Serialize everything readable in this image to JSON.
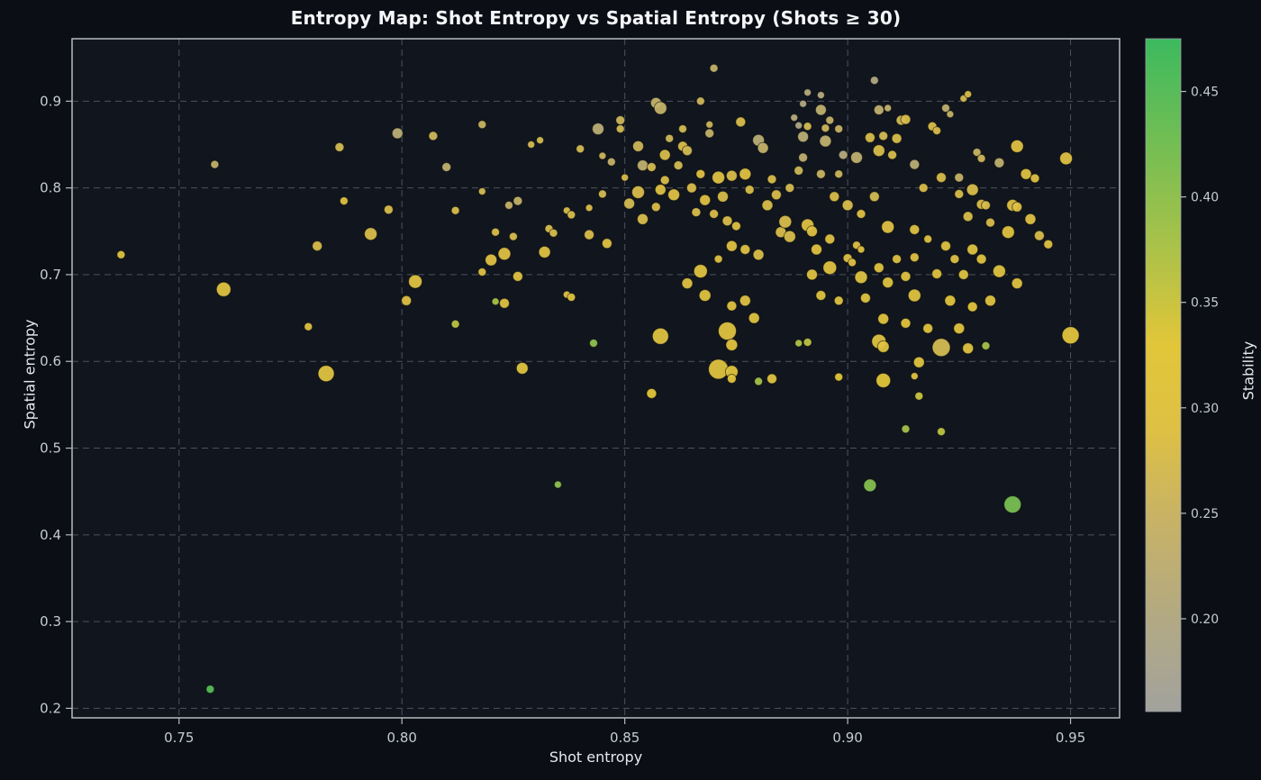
{
  "chart_data": {
    "type": "scatter",
    "title": "Entropy Map: Shot Entropy vs Spatial Entropy (Shots ≥ 30)",
    "xlabel": "Shot entropy",
    "ylabel": "Spatial entropy",
    "xlim": [
      0.726,
      0.961
    ],
    "ylim": [
      0.189,
      0.972
    ],
    "x_tick_values": [
      0.75,
      0.8,
      0.85,
      0.9,
      0.95
    ],
    "x_tick_labels": [
      "0.75",
      "0.80",
      "0.85",
      "0.90",
      "0.95"
    ],
    "y_tick_values": [
      0.2,
      0.3,
      0.4,
      0.5,
      0.6,
      0.7,
      0.8,
      0.9
    ],
    "y_tick_labels": [
      "0.2",
      "0.3",
      "0.4",
      "0.5",
      "0.6",
      "0.7",
      "0.8",
      "0.9"
    ],
    "grid": true,
    "colorbar": {
      "label": "Stability",
      "range": [
        0.156,
        0.475
      ],
      "tick_values": [
        0.2,
        0.25,
        0.3,
        0.35,
        0.4,
        0.45
      ],
      "tick_labels": [
        "0.20",
        "0.25",
        "0.30",
        "0.35",
        "0.40",
        "0.45"
      ],
      "colormap": [
        [
          0.156,
          "#a2a29d"
        ],
        [
          0.2,
          "#b2a983"
        ],
        [
          0.25,
          "#c9b363"
        ],
        [
          0.29,
          "#dec043"
        ],
        [
          0.33,
          "#e2c639"
        ],
        [
          0.37,
          "#b1c247"
        ],
        [
          0.41,
          "#84bf50"
        ],
        [
          0.475,
          "#3cba5e"
        ]
      ]
    },
    "point_format": "[shot_entropy, spatial_entropy, radius_px, stability]",
    "points": [
      [
        0.737,
        0.723,
        4.5,
        0.3
      ],
      [
        0.757,
        0.222,
        4.5,
        0.45
      ],
      [
        0.758,
        0.827,
        4.5,
        0.24
      ],
      [
        0.76,
        0.683,
        8,
        0.3
      ],
      [
        0.779,
        0.64,
        4.5,
        0.29
      ],
      [
        0.781,
        0.733,
        5.5,
        0.28
      ],
      [
        0.783,
        0.586,
        9,
        0.3
      ],
      [
        0.786,
        0.847,
        5,
        0.27
      ],
      [
        0.787,
        0.785,
        4.5,
        0.29
      ],
      [
        0.793,
        0.747,
        7,
        0.28
      ],
      [
        0.797,
        0.775,
        5,
        0.28
      ],
      [
        0.799,
        0.863,
        6,
        0.22
      ],
      [
        0.801,
        0.67,
        5.5,
        0.29
      ],
      [
        0.803,
        0.692,
        7.5,
        0.3
      ],
      [
        0.807,
        0.86,
        5,
        0.26
      ],
      [
        0.81,
        0.824,
        5,
        0.23
      ],
      [
        0.812,
        0.774,
        4.5,
        0.28
      ],
      [
        0.812,
        0.643,
        4.5,
        0.36
      ],
      [
        0.818,
        0.873,
        4.5,
        0.25
      ],
      [
        0.818,
        0.796,
        4,
        0.27
      ],
      [
        0.818,
        0.703,
        4.5,
        0.29
      ],
      [
        0.82,
        0.717,
        6.5,
        0.29
      ],
      [
        0.821,
        0.749,
        4.5,
        0.28
      ],
      [
        0.821,
        0.669,
        4,
        0.38
      ],
      [
        0.823,
        0.724,
        7,
        0.29
      ],
      [
        0.823,
        0.667,
        5.5,
        0.29
      ],
      [
        0.824,
        0.78,
        4.5,
        0.24
      ],
      [
        0.825,
        0.744,
        4.5,
        0.28
      ],
      [
        0.826,
        0.785,
        5,
        0.24
      ],
      [
        0.826,
        0.698,
        5.5,
        0.29
      ],
      [
        0.827,
        0.592,
        6.5,
        0.3
      ],
      [
        0.829,
        0.85,
        4,
        0.27
      ],
      [
        0.831,
        0.855,
        4,
        0.27
      ],
      [
        0.832,
        0.726,
        6.5,
        0.29
      ],
      [
        0.833,
        0.753,
        4.5,
        0.28
      ],
      [
        0.834,
        0.748,
        4.5,
        0.28
      ],
      [
        0.835,
        0.458,
        4,
        0.4
      ],
      [
        0.837,
        0.774,
        4,
        0.28
      ],
      [
        0.837,
        0.677,
        4,
        0.3
      ],
      [
        0.838,
        0.769,
        4.5,
        0.28
      ],
      [
        0.838,
        0.674,
        4.5,
        0.3
      ],
      [
        0.84,
        0.845,
        4.5,
        0.27
      ],
      [
        0.842,
        0.777,
        4,
        0.28
      ],
      [
        0.842,
        0.746,
        5.5,
        0.28
      ],
      [
        0.843,
        0.621,
        4.5,
        0.4
      ],
      [
        0.844,
        0.868,
        6.5,
        0.22
      ],
      [
        0.845,
        0.837,
        4,
        0.26
      ],
      [
        0.845,
        0.793,
        4.5,
        0.27
      ],
      [
        0.846,
        0.736,
        5.5,
        0.29
      ],
      [
        0.847,
        0.83,
        4.5,
        0.24
      ],
      [
        0.849,
        0.878,
        5,
        0.26
      ],
      [
        0.849,
        0.868,
        4.5,
        0.27
      ],
      [
        0.85,
        0.812,
        4,
        0.28
      ],
      [
        0.851,
        0.782,
        6,
        0.27
      ],
      [
        0.853,
        0.848,
        6,
        0.26
      ],
      [
        0.853,
        0.795,
        7,
        0.28
      ],
      [
        0.854,
        0.826,
        6,
        0.23
      ],
      [
        0.854,
        0.764,
        6,
        0.28
      ],
      [
        0.856,
        0.824,
        5,
        0.27
      ],
      [
        0.856,
        0.563,
        5.5,
        0.33
      ],
      [
        0.857,
        0.898,
        6,
        0.24
      ],
      [
        0.857,
        0.778,
        5,
        0.28
      ],
      [
        0.858,
        0.892,
        7,
        0.24
      ],
      [
        0.858,
        0.798,
        6,
        0.29
      ],
      [
        0.858,
        0.629,
        9,
        0.3
      ],
      [
        0.859,
        0.838,
        6,
        0.28
      ],
      [
        0.859,
        0.809,
        5,
        0.28
      ],
      [
        0.86,
        0.857,
        4.5,
        0.26
      ],
      [
        0.861,
        0.792,
        6.5,
        0.29
      ],
      [
        0.862,
        0.826,
        5,
        0.27
      ],
      [
        0.863,
        0.868,
        4.5,
        0.27
      ],
      [
        0.863,
        0.848,
        5.5,
        0.28
      ],
      [
        0.864,
        0.843,
        5.5,
        0.27
      ],
      [
        0.864,
        0.69,
        6,
        0.29
      ],
      [
        0.865,
        0.8,
        5.5,
        0.28
      ],
      [
        0.866,
        0.772,
        5,
        0.28
      ],
      [
        0.867,
        0.9,
        4.5,
        0.26
      ],
      [
        0.867,
        0.816,
        5,
        0.29
      ],
      [
        0.867,
        0.704,
        7.5,
        0.3
      ],
      [
        0.868,
        0.786,
        6,
        0.29
      ],
      [
        0.868,
        0.676,
        6.5,
        0.3
      ],
      [
        0.869,
        0.873,
        4,
        0.26
      ],
      [
        0.869,
        0.863,
        5,
        0.24
      ],
      [
        0.87,
        0.938,
        4.5,
        0.24
      ],
      [
        0.87,
        0.77,
        5,
        0.28
      ],
      [
        0.871,
        0.812,
        7,
        0.29
      ],
      [
        0.871,
        0.718,
        4.5,
        0.29
      ],
      [
        0.871,
        0.591,
        11,
        0.3
      ],
      [
        0.872,
        0.79,
        6,
        0.28
      ],
      [
        0.873,
        0.762,
        5.5,
        0.28
      ],
      [
        0.873,
        0.635,
        10,
        0.3
      ],
      [
        0.874,
        0.814,
        6,
        0.28
      ],
      [
        0.874,
        0.733,
        6,
        0.29
      ],
      [
        0.874,
        0.664,
        5.5,
        0.3
      ],
      [
        0.874,
        0.619,
        6.5,
        0.31
      ],
      [
        0.874,
        0.588,
        7,
        0.31
      ],
      [
        0.874,
        0.58,
        5,
        0.32
      ],
      [
        0.875,
        0.756,
        5,
        0.29
      ],
      [
        0.876,
        0.876,
        5.5,
        0.28
      ],
      [
        0.877,
        0.816,
        6.5,
        0.29
      ],
      [
        0.877,
        0.729,
        5.5,
        0.29
      ],
      [
        0.877,
        0.67,
        6,
        0.29
      ],
      [
        0.878,
        0.798,
        5,
        0.28
      ],
      [
        0.879,
        0.65,
        6,
        0.3
      ],
      [
        0.88,
        0.855,
        6.5,
        0.22
      ],
      [
        0.88,
        0.723,
        6,
        0.28
      ],
      [
        0.88,
        0.577,
        4.5,
        0.38
      ],
      [
        0.881,
        0.846,
        6,
        0.24
      ],
      [
        0.882,
        0.78,
        6,
        0.28
      ],
      [
        0.883,
        0.81,
        5,
        0.28
      ],
      [
        0.883,
        0.58,
        5.5,
        0.3
      ],
      [
        0.884,
        0.792,
        5.5,
        0.28
      ],
      [
        0.885,
        0.749,
        6,
        0.28
      ],
      [
        0.886,
        0.761,
        7,
        0.28
      ],
      [
        0.887,
        0.8,
        5,
        0.27
      ],
      [
        0.887,
        0.744,
        6.5,
        0.28
      ],
      [
        0.888,
        0.881,
        4,
        0.21
      ],
      [
        0.889,
        0.872,
        4,
        0.19
      ],
      [
        0.889,
        0.82,
        5,
        0.26
      ],
      [
        0.889,
        0.621,
        4,
        0.37
      ],
      [
        0.89,
        0.897,
        4,
        0.2
      ],
      [
        0.89,
        0.859,
        6,
        0.22
      ],
      [
        0.89,
        0.835,
        5,
        0.23
      ],
      [
        0.891,
        0.91,
        4,
        0.21
      ],
      [
        0.891,
        0.871,
        4.5,
        0.27
      ],
      [
        0.891,
        0.757,
        7,
        0.29
      ],
      [
        0.891,
        0.622,
        4.5,
        0.36
      ],
      [
        0.892,
        0.75,
        6,
        0.29
      ],
      [
        0.892,
        0.7,
        6,
        0.3
      ],
      [
        0.893,
        0.729,
        6,
        0.3
      ],
      [
        0.894,
        0.907,
        4,
        0.21
      ],
      [
        0.894,
        0.89,
        6,
        0.23
      ],
      [
        0.894,
        0.816,
        5,
        0.25
      ],
      [
        0.894,
        0.676,
        5.5,
        0.3
      ],
      [
        0.895,
        0.869,
        4.5,
        0.26
      ],
      [
        0.895,
        0.854,
        6.5,
        0.23
      ],
      [
        0.896,
        0.878,
        4.5,
        0.24
      ],
      [
        0.896,
        0.741,
        5.5,
        0.29
      ],
      [
        0.896,
        0.708,
        7.5,
        0.3
      ],
      [
        0.897,
        0.79,
        5.5,
        0.28
      ],
      [
        0.898,
        0.868,
        4.5,
        0.25
      ],
      [
        0.898,
        0.816,
        4.5,
        0.26
      ],
      [
        0.898,
        0.67,
        5,
        0.3
      ],
      [
        0.898,
        0.582,
        4.5,
        0.33
      ],
      [
        0.899,
        0.838,
        5,
        0.21
      ],
      [
        0.9,
        0.78,
        6,
        0.28
      ],
      [
        0.9,
        0.719,
        5,
        0.29
      ],
      [
        0.901,
        0.714,
        4.5,
        0.3
      ],
      [
        0.902,
        0.835,
        6.5,
        0.23
      ],
      [
        0.902,
        0.734,
        4.5,
        0.29
      ],
      [
        0.903,
        0.77,
        5,
        0.29
      ],
      [
        0.903,
        0.729,
        4,
        0.29
      ],
      [
        0.903,
        0.697,
        7,
        0.3
      ],
      [
        0.904,
        0.673,
        5.5,
        0.3
      ],
      [
        0.905,
        0.858,
        5.5,
        0.28
      ],
      [
        0.905,
        0.457,
        7,
        0.41
      ],
      [
        0.906,
        0.924,
        4.5,
        0.2
      ],
      [
        0.906,
        0.79,
        5.5,
        0.27
      ],
      [
        0.907,
        0.89,
        5.5,
        0.23
      ],
      [
        0.907,
        0.843,
        6.5,
        0.28
      ],
      [
        0.907,
        0.708,
        5.5,
        0.3
      ],
      [
        0.907,
        0.623,
        8,
        0.3
      ],
      [
        0.908,
        0.86,
        5,
        0.27
      ],
      [
        0.908,
        0.649,
        6,
        0.31
      ],
      [
        0.908,
        0.617,
        6.5,
        0.3
      ],
      [
        0.908,
        0.578,
        8,
        0.33
      ],
      [
        0.909,
        0.892,
        4,
        0.24
      ],
      [
        0.909,
        0.755,
        7,
        0.29
      ],
      [
        0.909,
        0.691,
        6,
        0.3
      ],
      [
        0.91,
        0.838,
        5,
        0.28
      ],
      [
        0.911,
        0.857,
        5.5,
        0.28
      ],
      [
        0.911,
        0.718,
        5,
        0.29
      ],
      [
        0.912,
        0.878,
        5.5,
        0.27
      ],
      [
        0.913,
        0.879,
        5.5,
        0.28
      ],
      [
        0.913,
        0.698,
        5.5,
        0.3
      ],
      [
        0.913,
        0.644,
        5.5,
        0.31
      ],
      [
        0.913,
        0.522,
        4.5,
        0.38
      ],
      [
        0.915,
        0.827,
        5.5,
        0.22
      ],
      [
        0.915,
        0.752,
        5.5,
        0.29
      ],
      [
        0.915,
        0.72,
        5,
        0.29
      ],
      [
        0.915,
        0.676,
        7,
        0.3
      ],
      [
        0.915,
        0.583,
        4,
        0.3
      ],
      [
        0.916,
        0.599,
        6,
        0.3
      ],
      [
        0.916,
        0.56,
        4.5,
        0.35
      ],
      [
        0.917,
        0.8,
        5,
        0.28
      ],
      [
        0.918,
        0.741,
        4.5,
        0.29
      ],
      [
        0.918,
        0.638,
        5.5,
        0.31
      ],
      [
        0.919,
        0.871,
        5,
        0.28
      ],
      [
        0.92,
        0.866,
        4.5,
        0.28
      ],
      [
        0.92,
        0.701,
        5.5,
        0.3
      ],
      [
        0.921,
        0.812,
        5.5,
        0.28
      ],
      [
        0.921,
        0.616,
        10,
        0.27
      ],
      [
        0.921,
        0.519,
        4.5,
        0.36
      ],
      [
        0.922,
        0.892,
        4.5,
        0.23
      ],
      [
        0.923,
        0.885,
        4,
        0.24
      ],
      [
        0.922,
        0.733,
        5.5,
        0.3
      ],
      [
        0.923,
        0.67,
        6,
        0.31
      ],
      [
        0.924,
        0.718,
        5,
        0.29
      ],
      [
        0.925,
        0.812,
        5,
        0.24
      ],
      [
        0.925,
        0.793,
        5,
        0.28
      ],
      [
        0.925,
        0.638,
        6,
        0.31
      ],
      [
        0.926,
        0.903,
        4,
        0.27
      ],
      [
        0.926,
        0.7,
        5.5,
        0.3
      ],
      [
        0.927,
        0.908,
        4,
        0.28
      ],
      [
        0.927,
        0.767,
        5.5,
        0.28
      ],
      [
        0.927,
        0.615,
        6,
        0.3
      ],
      [
        0.928,
        0.798,
        6.5,
        0.28
      ],
      [
        0.928,
        0.729,
        6,
        0.3
      ],
      [
        0.928,
        0.663,
        5.5,
        0.31
      ],
      [
        0.929,
        0.841,
        4.5,
        0.25
      ],
      [
        0.93,
        0.834,
        4.5,
        0.26
      ],
      [
        0.93,
        0.781,
        5.5,
        0.28
      ],
      [
        0.93,
        0.718,
        5.5,
        0.3
      ],
      [
        0.931,
        0.78,
        5,
        0.28
      ],
      [
        0.931,
        0.618,
        4.5,
        0.38
      ],
      [
        0.932,
        0.76,
        5,
        0.28
      ],
      [
        0.932,
        0.67,
        6,
        0.3
      ],
      [
        0.934,
        0.829,
        5.5,
        0.23
      ],
      [
        0.934,
        0.704,
        7,
        0.3
      ],
      [
        0.936,
        0.749,
        7,
        0.3
      ],
      [
        0.937,
        0.78,
        6.5,
        0.29
      ],
      [
        0.937,
        0.435,
        9.5,
        0.42
      ],
      [
        0.938,
        0.848,
        7,
        0.29
      ],
      [
        0.938,
        0.778,
        5.5,
        0.29
      ],
      [
        0.938,
        0.69,
        6,
        0.3
      ],
      [
        0.94,
        0.816,
        6,
        0.29
      ],
      [
        0.941,
        0.764,
        6,
        0.29
      ],
      [
        0.942,
        0.811,
        5,
        0.29
      ],
      [
        0.943,
        0.745,
        5.5,
        0.28
      ],
      [
        0.945,
        0.735,
        5,
        0.29
      ],
      [
        0.949,
        0.834,
        7,
        0.29
      ],
      [
        0.95,
        0.63,
        9.5,
        0.31
      ]
    ]
  },
  "style_colors": {
    "figure_background": "#0b0e15",
    "axes_background": "#11151d",
    "grid": "#4d525c",
    "frame": "#b6bbc2",
    "tick_label": "#c6cbd2",
    "title": "#f5f6f8"
  }
}
